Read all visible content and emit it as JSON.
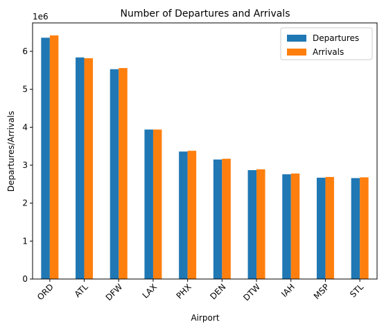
{
  "chart_data": {
    "type": "bar",
    "title": "Number of Departures and Arrivals",
    "xlabel": "Airport",
    "ylabel": "Departures/Arrivals",
    "y_scale_label": "1e6",
    "ylim": [
      0,
      6.75
    ],
    "y_ticks": [
      0,
      1,
      2,
      3,
      4,
      5,
      6
    ],
    "y_tick_labels": [
      "0",
      "1",
      "2",
      "3",
      "4",
      "5",
      "6"
    ],
    "categories": [
      "ORD",
      "ATL",
      "DFW",
      "LAX",
      "PHX",
      "DEN",
      "DTW",
      "IAH",
      "MSP",
      "STL"
    ],
    "series": [
      {
        "name": "Departures",
        "color": "#1f77b4",
        "values": [
          6.36,
          5.84,
          5.53,
          3.94,
          3.36,
          3.15,
          2.87,
          2.76,
          2.67,
          2.66
        ]
      },
      {
        "name": "Arrivals",
        "color": "#ff7f0e",
        "values": [
          6.42,
          5.82,
          5.56,
          3.94,
          3.38,
          3.17,
          2.89,
          2.78,
          2.69,
          2.68
        ]
      }
    ],
    "legend": {
      "placement": "top-right"
    },
    "grid": false,
    "tick_label_rotation": 45
  }
}
